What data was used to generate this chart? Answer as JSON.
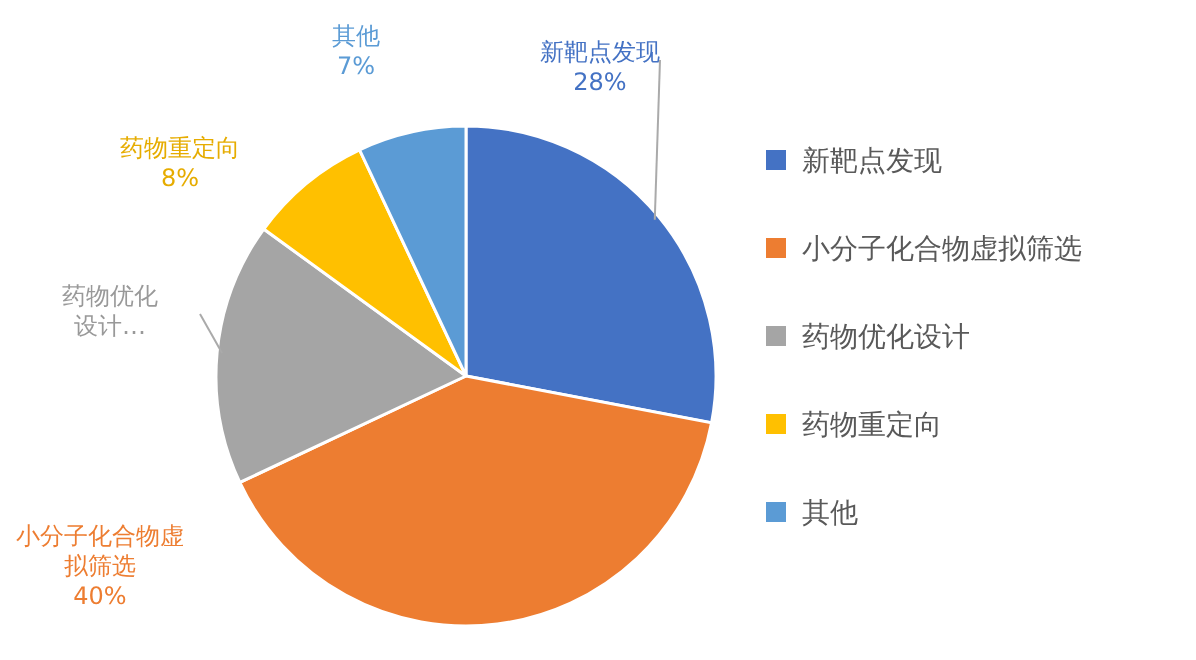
{
  "chart_data": {
    "type": "pie",
    "categories": [
      "新靶点发现",
      "小分子化合物虚拟筛选",
      "药物优化设计",
      "药物重定向",
      "其他"
    ],
    "values": [
      28,
      40,
      17,
      8,
      7
    ],
    "colors": [
      "#4472c4",
      "#ed7d31",
      "#a5a5a5",
      "#ffc000",
      "#5b9bd5"
    ],
    "value_labels": [
      "28%",
      "40%",
      null,
      "8%",
      "7%"
    ],
    "annotations": [
      "药物优化设计…"
    ],
    "legend": "right"
  }
}
